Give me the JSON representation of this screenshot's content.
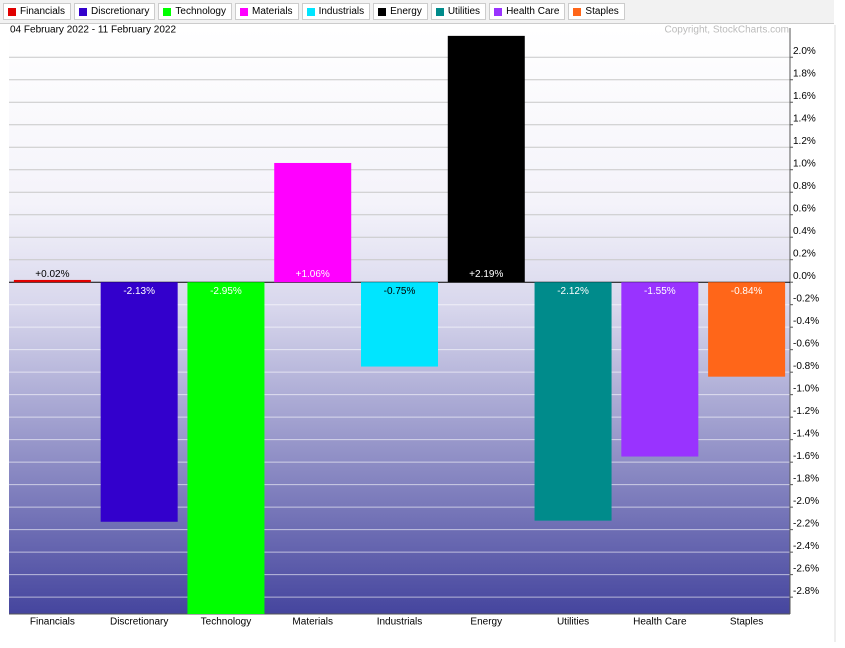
{
  "chart_data": {
    "type": "bar",
    "title": "04 February 2022 - 11 February 2022",
    "copyright": "Copyright, StockCharts.com",
    "categories": [
      "Financials",
      "Discretionary",
      "Technology",
      "Materials",
      "Industrials",
      "Energy",
      "Utilities",
      "Health Care",
      "Staples"
    ],
    "values": [
      0.02,
      -2.13,
      -2.95,
      1.06,
      -0.75,
      2.19,
      -2.12,
      -1.55,
      -0.84
    ],
    "value_labels": [
      "+0.02%",
      "-2.13%",
      "-2.95%",
      "+1.06%",
      "-0.75%",
      "+2.19%",
      "-2.12%",
      "-1.55%",
      "-0.84%"
    ],
    "colors": [
      "#e00000",
      "#3300cc",
      "#00ff00",
      "#ff00ff",
      "#00e5ff",
      "#000000",
      "#008b8b",
      "#9933ff",
      "#ff6619"
    ],
    "ylim": [
      -2.95,
      2.26
    ],
    "yticks": [
      {
        "value": 2.0,
        "label": "2.0%"
      },
      {
        "value": 1.8,
        "label": "1.8%"
      },
      {
        "value": 1.6,
        "label": "1.6%"
      },
      {
        "value": 1.4,
        "label": "1.4%"
      },
      {
        "value": 1.2,
        "label": "1.2%"
      },
      {
        "value": 1.0,
        "label": "1.0%"
      },
      {
        "value": 0.8,
        "label": "0.8%"
      },
      {
        "value": 0.6,
        "label": "0.6%"
      },
      {
        "value": 0.4,
        "label": "0.4%"
      },
      {
        "value": 0.2,
        "label": "0.2%"
      },
      {
        "value": 0.0,
        "label": "0.0%"
      },
      {
        "value": -0.2,
        "label": "-0.2%"
      },
      {
        "value": -0.4,
        "label": "-0.4%"
      },
      {
        "value": -0.6,
        "label": "-0.6%"
      },
      {
        "value": -0.8,
        "label": "-0.8%"
      },
      {
        "value": -1.0,
        "label": "-1.0%"
      },
      {
        "value": -1.2,
        "label": "-1.2%"
      },
      {
        "value": -1.4,
        "label": "-1.4%"
      },
      {
        "value": -1.6,
        "label": "-1.6%"
      },
      {
        "value": -1.8,
        "label": "-1.8%"
      },
      {
        "value": -2.0,
        "label": "-2.0%"
      },
      {
        "value": -2.2,
        "label": "-2.2%"
      },
      {
        "value": -2.4,
        "label": "-2.4%"
      },
      {
        "value": -2.6,
        "label": "-2.6%"
      },
      {
        "value": -2.8,
        "label": "-2.8%"
      }
    ],
    "grid": true
  }
}
